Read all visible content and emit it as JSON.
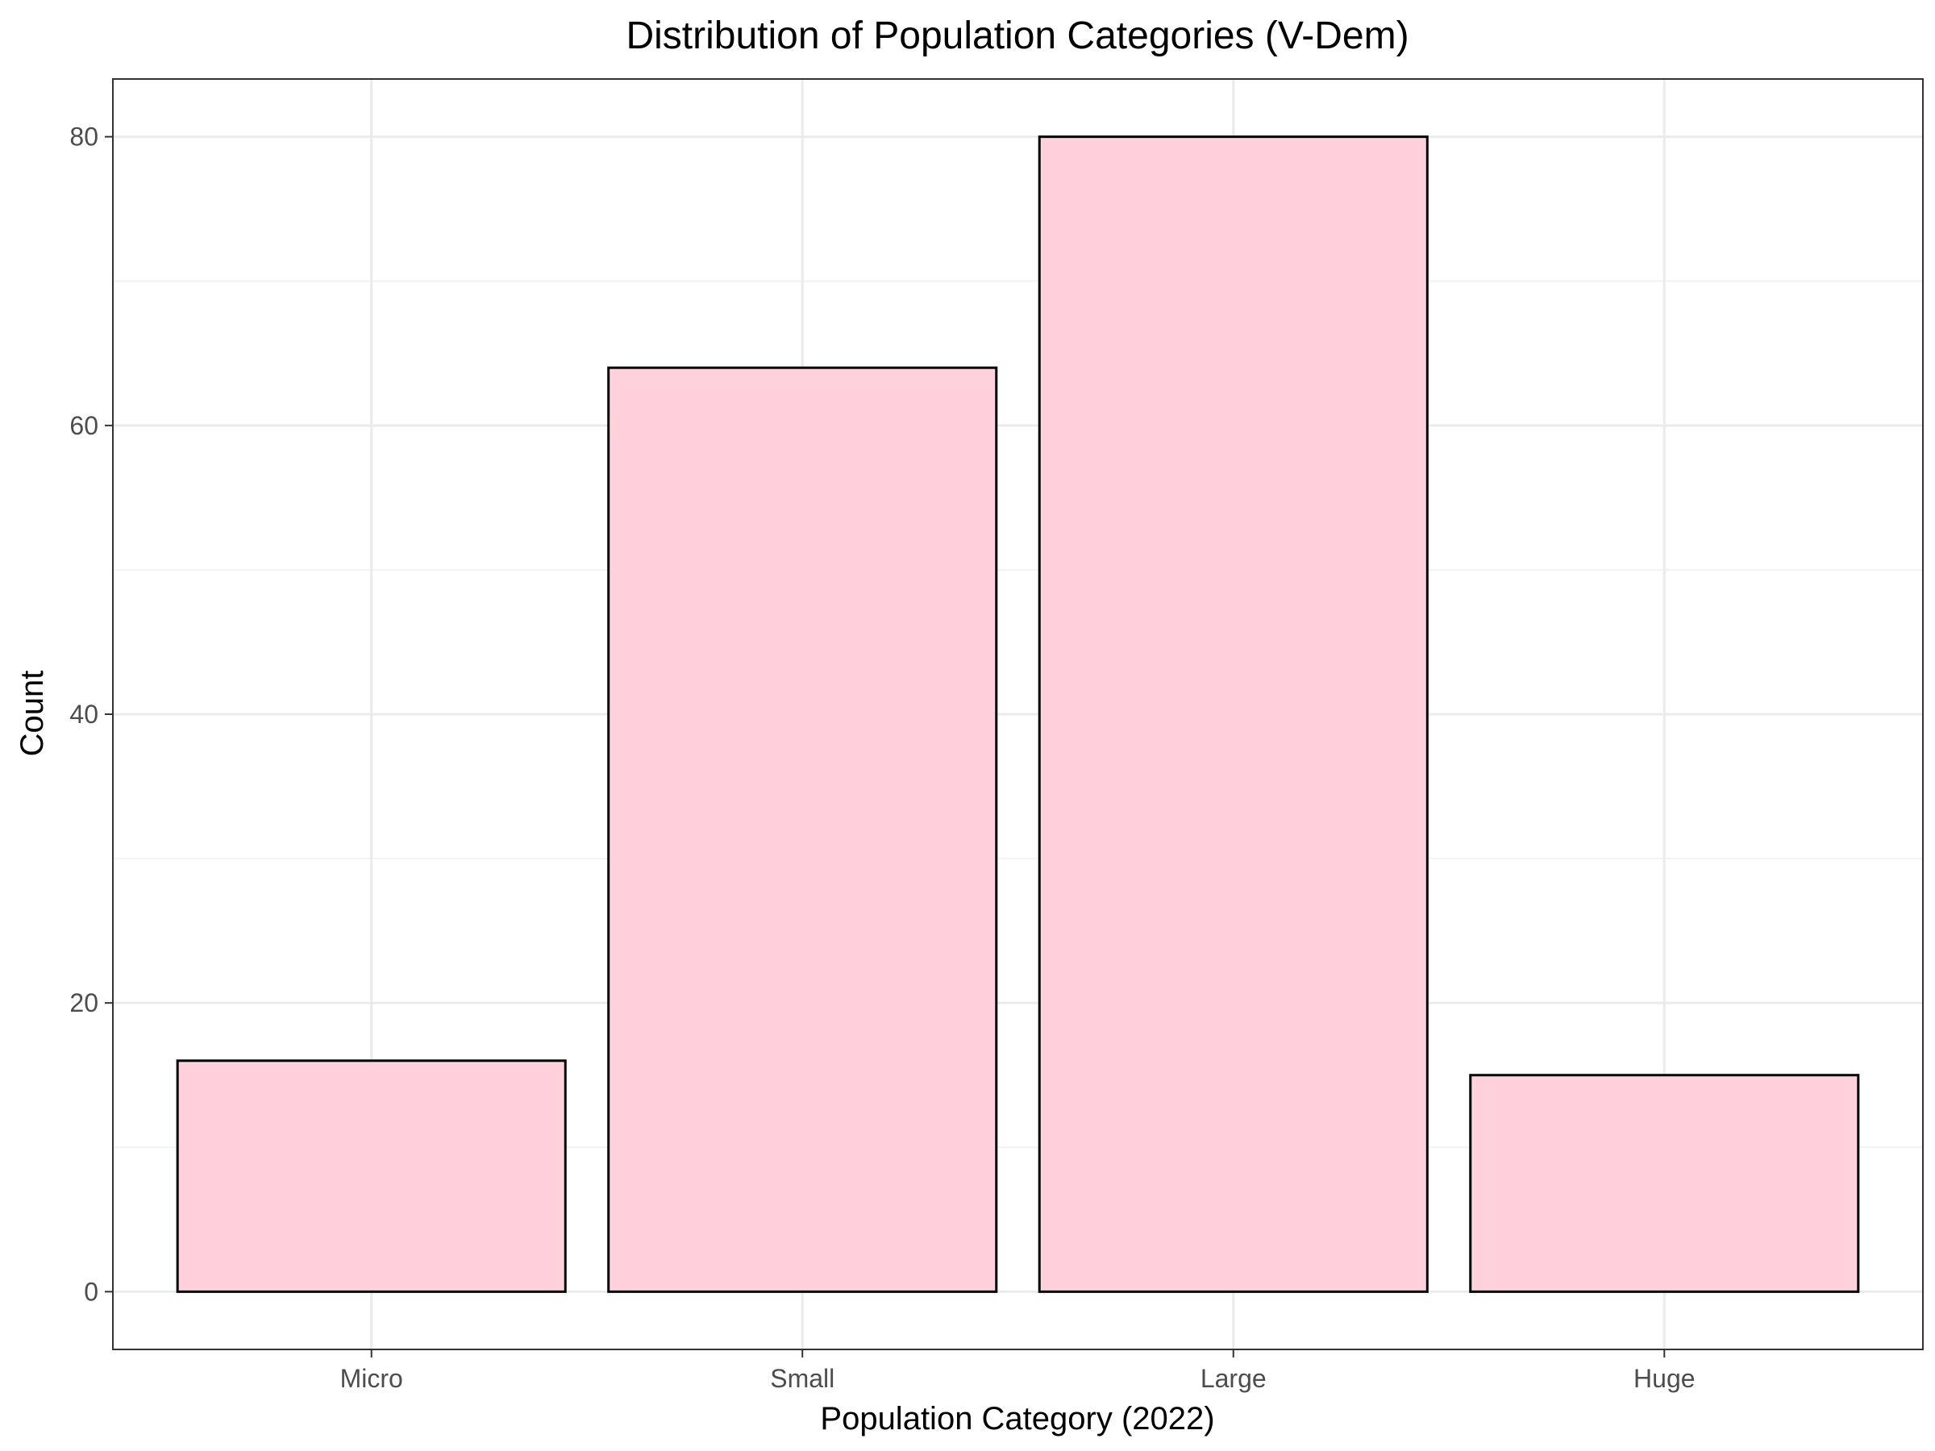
{
  "chart_data": {
    "type": "bar",
    "title": "Distribution of Population Categories (V-Dem)",
    "xlabel": "Population Category (2022)",
    "ylabel": "Count",
    "categories": [
      "Micro",
      "Small",
      "Large",
      "Huge"
    ],
    "values": [
      16,
      64,
      80,
      15
    ],
    "ylim": [
      -4,
      84
    ],
    "yticks": [
      0,
      20,
      40,
      60,
      80
    ],
    "yminor": [
      10,
      30,
      50,
      70
    ],
    "grid": true,
    "legend": "none",
    "colors": {
      "bar_fill": "#ffd1dc",
      "bar_stroke": "#000000",
      "grid_major": "#ebebeb",
      "grid_minor": "#f2f2f2",
      "panel_border": "#333333"
    }
  }
}
